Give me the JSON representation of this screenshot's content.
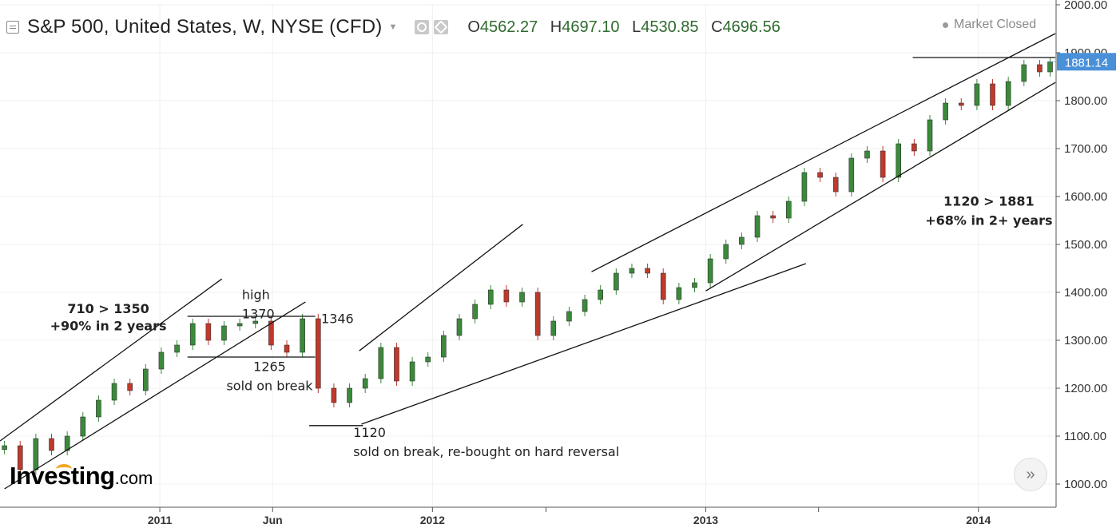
{
  "header": {
    "title": "S&P 500, United States, W, NYSE (CFD)",
    "open_label": "O",
    "open_value": "4562.27",
    "high_label": "H",
    "high_value": "4697.10",
    "low_label": "L",
    "low_value": "4530.85",
    "close_label": "C",
    "close_value": "4696.56",
    "market_status": "Market Closed"
  },
  "branding": {
    "logo_text": "Investing",
    "logo_suffix": ".com"
  },
  "controls": {
    "scroll_right_glyph": "»"
  },
  "colors": {
    "up": "#3a8a3a",
    "down": "#c0392b",
    "grid": "#f0f0f0",
    "price_tag": "#4a90d9"
  },
  "chart_data": {
    "type": "candlestick",
    "title": "S&P 500, United States, W, NYSE (CFD)",
    "timeframe": "W",
    "ylim": [
      980,
      2000
    ],
    "y_ticks": [
      "1000.00",
      "1100.00",
      "1200.00",
      "1300.00",
      "1400.00",
      "1500.00",
      "1600.00",
      "1700.00",
      "1800.00",
      "1900.00",
      "2000.00"
    ],
    "x_ticks": [
      "2011",
      "Jun",
      "2012",
      "2013",
      "2014"
    ],
    "x_ticks_minor": [
      "2012-06",
      "2013-06"
    ],
    "x_range": [
      "2010-06-01",
      "2014-04-15"
    ],
    "last_price": "1881.14",
    "series": [
      {
        "x": [
          "2010-06-07",
          "2010-06-28",
          "2010-07-19",
          "2010-08-09",
          "2010-08-30",
          "2010-09-20",
          "2010-10-11",
          "2010-11-01",
          "2010-11-22",
          "2010-12-13",
          "2011-01-03",
          "2011-01-24",
          "2011-02-14",
          "2011-03-07",
          "2011-03-28",
          "2011-04-18",
          "2011-05-09",
          "2011-05-30",
          "2011-06-20",
          "2011-07-11",
          "2011-08-01",
          "2011-08-22",
          "2011-09-12",
          "2011-10-03",
          "2011-10-24",
          "2011-11-14",
          "2011-12-05",
          "2011-12-26",
          "2012-01-16",
          "2012-02-06",
          "2012-02-27",
          "2012-03-19",
          "2012-04-09",
          "2012-04-30",
          "2012-05-21",
          "2012-06-11",
          "2012-07-02",
          "2012-07-23",
          "2012-08-13",
          "2012-09-03",
          "2012-09-24",
          "2012-10-15",
          "2012-11-05",
          "2012-11-26",
          "2012-12-17",
          "2013-01-07",
          "2013-01-28",
          "2013-02-18",
          "2013-03-11",
          "2013-04-01",
          "2013-04-22",
          "2013-05-13",
          "2013-06-03",
          "2013-06-24",
          "2013-07-15",
          "2013-08-05",
          "2013-08-26",
          "2013-09-16",
          "2013-10-07",
          "2013-10-28",
          "2013-11-18",
          "2013-12-09",
          "2013-12-30",
          "2014-01-20",
          "2014-02-10",
          "2014-03-03",
          "2014-03-24",
          "2014-04-07"
        ],
        "close": [
          1080,
          1030,
          1095,
          1070,
          1100,
          1140,
          1175,
          1210,
          1195,
          1240,
          1275,
          1290,
          1335,
          1300,
          1330,
          1335,
          1340,
          1290,
          1275,
          1345,
          1200,
          1170,
          1200,
          1220,
          1285,
          1215,
          1255,
          1265,
          1310,
          1345,
          1375,
          1405,
          1380,
          1400,
          1310,
          1340,
          1360,
          1385,
          1405,
          1440,
          1450,
          1440,
          1385,
          1410,
          1420,
          1470,
          1500,
          1515,
          1560,
          1555,
          1590,
          1650,
          1640,
          1610,
          1680,
          1695,
          1640,
          1710,
          1695,
          1760,
          1795,
          1790,
          1835,
          1790,
          1840,
          1875,
          1860,
          1881
        ]
      }
    ],
    "annotations": [
      {
        "text": "high",
        "value": 1370
      },
      {
        "text": "1370"
      },
      {
        "text": "710 > 1350"
      },
      {
        "text": "+90% in 2 years"
      },
      {
        "text": "1346"
      },
      {
        "text": "1265"
      },
      {
        "text": "sold on break"
      },
      {
        "text": "1120"
      },
      {
        "text": "sold on break, re-bought on hard reversal"
      },
      {
        "text": "1120 > 1881"
      },
      {
        "text": "+68% in 2+ years"
      }
    ],
    "grid": true
  }
}
